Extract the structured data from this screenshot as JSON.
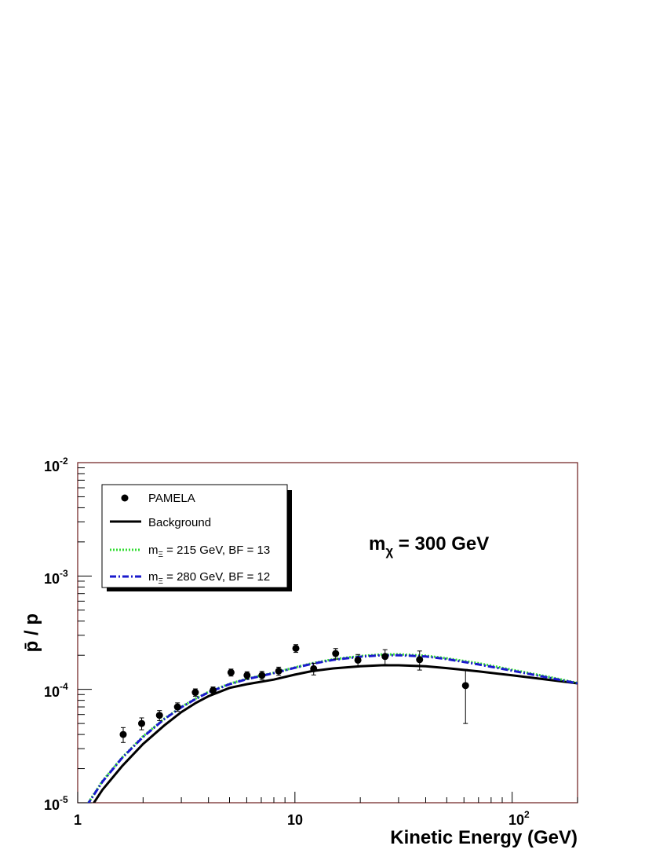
{
  "chart_data": {
    "type": "line",
    "title": "",
    "xlabel": "Kinetic Energy (GeV)",
    "ylabel": "p̄ / p",
    "xscale": "log",
    "yscale": "log",
    "xlim": [
      1,
      200
    ],
    "ylim": [
      1e-05,
      0.01
    ],
    "grid": false,
    "legend_position": "top-left",
    "x_tick_labels": [
      {
        "value": 1,
        "base": "1",
        "exp": ""
      },
      {
        "value": 10,
        "base": "10",
        "exp": ""
      },
      {
        "value": 100,
        "base": "10",
        "exp": "2"
      }
    ],
    "y_tick_labels": [
      {
        "value": 1e-05,
        "base": "10",
        "exp": "-5"
      },
      {
        "value": 0.0001,
        "base": "10",
        "exp": "-4"
      },
      {
        "value": 0.001,
        "base": "10",
        "exp": "-3"
      },
      {
        "value": 0.01,
        "base": "10",
        "exp": "-2"
      }
    ],
    "annotation": {
      "main": "m",
      "sub": "χ",
      "rest": " = 300 GeV"
    },
    "series": [
      {
        "name": "PAMELA",
        "style": "points",
        "color": "#000000",
        "x": [
          1.62,
          1.97,
          2.38,
          2.88,
          3.48,
          4.2,
          5.08,
          6.02,
          7.05,
          8.42,
          10.1,
          12.2,
          15.4,
          19.5,
          26.0,
          37.5,
          61.0
        ],
        "y": [
          4e-05,
          5e-05,
          5.9e-05,
          7e-05,
          9.4e-05,
          9.8e-05,
          0.000141,
          0.000133,
          0.000133,
          0.000145,
          0.00023,
          0.000152,
          0.000207,
          0.000181,
          0.000195,
          0.000183,
          0.000108
        ],
        "y_low": [
          3.4e-05,
          4.4e-05,
          5.3e-05,
          6.4e-05,
          8.7e-05,
          9.1e-05,
          0.000131,
          0.000123,
          0.000122,
          0.000133,
          0.000212,
          0.000134,
          0.000185,
          0.000159,
          0.000166,
          0.000148,
          5e-05
        ],
        "y_high": [
          4.6e-05,
          5.6e-05,
          6.5e-05,
          7.6e-05,
          0.000101,
          0.000105,
          0.000151,
          0.000143,
          0.000144,
          0.000157,
          0.000248,
          0.00017,
          0.000229,
          0.000203,
          0.000224,
          0.000218,
          0.00015
        ]
      },
      {
        "name": "Background",
        "style": "solid",
        "color": "#000000",
        "x": [
          1.1,
          1.3,
          1.6,
          2.0,
          2.5,
          3.0,
          3.5,
          4.0,
          5.0,
          6.0,
          8.0,
          10,
          12,
          15,
          20,
          25,
          30,
          40,
          50,
          70,
          100,
          150,
          200
        ],
        "y": [
          8e-06,
          1.3e-05,
          2.1e-05,
          3.3e-05,
          4.8e-05,
          6.3e-05,
          7.6e-05,
          8.7e-05,
          0.000103,
          0.000111,
          0.000122,
          0.000135,
          0.000145,
          0.000153,
          0.00016,
          0.000163,
          0.000163,
          0.00016,
          0.000154,
          0.000144,
          0.000133,
          0.000121,
          0.000113
        ]
      },
      {
        "name_main": "m",
        "name_sub": "Ξ",
        "name_rest": " = 215 GeV, BF = 13",
        "style": "dotted",
        "color": "#33dd33",
        "x": [
          1.1,
          1.3,
          1.6,
          2.0,
          2.5,
          3.0,
          3.5,
          4.0,
          5.0,
          6.0,
          8.0,
          10,
          12,
          15,
          20,
          25,
          30,
          40,
          50,
          70,
          100,
          150,
          200
        ],
        "y": [
          9.5e-06,
          1.55e-05,
          2.5e-05,
          3.85e-05,
          5.5e-05,
          7e-05,
          8.3e-05,
          9.5e-05,
          0.000112,
          0.000124,
          0.00014,
          0.000156,
          0.00017,
          0.000184,
          0.000197,
          0.000203,
          0.000204,
          0.000198,
          0.000188,
          0.00017,
          0.000149,
          0.000128,
          0.000114
        ]
      },
      {
        "name_main": "m",
        "name_sub": "Ξ",
        "name_rest": " = 280 GeV, BF = 12",
        "style": "dashdot",
        "color": "#1a1acc",
        "x": [
          1.1,
          1.3,
          1.6,
          2.0,
          2.5,
          3.0,
          3.5,
          4.0,
          5.0,
          6.0,
          8.0,
          10,
          12,
          15,
          20,
          25,
          30,
          40,
          50,
          70,
          100,
          150,
          200
        ],
        "y": [
          9.4e-06,
          1.53e-05,
          2.48e-05,
          3.8e-05,
          5.45e-05,
          6.95e-05,
          8.25e-05,
          9.4e-05,
          0.000111,
          0.000123,
          0.000139,
          0.000155,
          0.000168,
          0.000182,
          0.000194,
          0.0002,
          0.0002,
          0.000195,
          0.000185,
          0.000166,
          0.000146,
          0.000126,
          0.000113
        ]
      }
    ]
  },
  "legend": {
    "pamela": "PAMELA",
    "background": "Background",
    "entry215_main": "m",
    "entry215_sub": "Ξ",
    "entry215_rest": " = 215 GeV, BF = 13",
    "entry280_main": "m",
    "entry280_sub": "Ξ",
    "entry280_rest": " = 280 GeV, BF = 12"
  },
  "colors": {
    "frame": "#6b1a1a",
    "green": "#33dd33",
    "blue": "#1a1acc"
  }
}
